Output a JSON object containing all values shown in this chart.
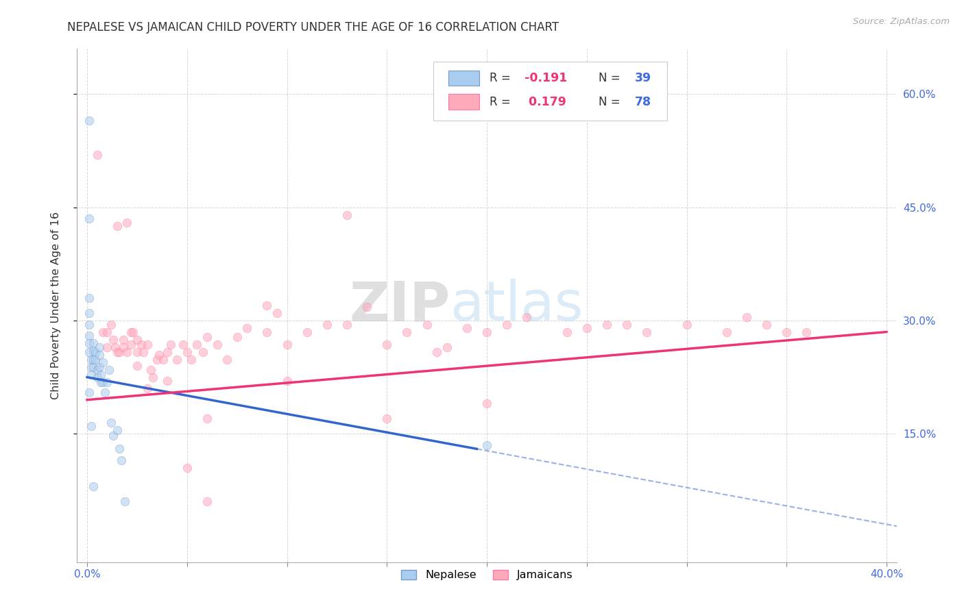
{
  "title": "NEPALESE VS JAMAICAN CHILD POVERTY UNDER THE AGE OF 16 CORRELATION CHART",
  "source": "Source: ZipAtlas.com",
  "ylabel": "Child Poverty Under the Age of 16",
  "xlim": [
    -0.005,
    0.405
  ],
  "ylim": [
    -0.02,
    0.66
  ],
  "xticks": [
    0.0,
    0.05,
    0.1,
    0.15,
    0.2,
    0.25,
    0.3,
    0.35,
    0.4
  ],
  "yticks": [
    0.15,
    0.3,
    0.45,
    0.6
  ],
  "ytick_labels": [
    "15.0%",
    "30.0%",
    "45.0%",
    "60.0%"
  ],
  "grid_color": "#cccccc",
  "background_color": "#ffffff",
  "nepalese_color": "#aaccee",
  "jamaican_color": "#ffaabb",
  "nepalese_edge": "#7799cc",
  "jamaican_edge": "#ff77aa",
  "trend_nepalese_color": "#3366cc",
  "trend_jamaican_color": "#ee3377",
  "nepalese_x": [
    0.001,
    0.001,
    0.001,
    0.001,
    0.001,
    0.001,
    0.001,
    0.001,
    0.002,
    0.002,
    0.002,
    0.003,
    0.003,
    0.003,
    0.003,
    0.004,
    0.004,
    0.005,
    0.005,
    0.006,
    0.006,
    0.006,
    0.007,
    0.007,
    0.008,
    0.008,
    0.009,
    0.01,
    0.011,
    0.012,
    0.013,
    0.015,
    0.016,
    0.017,
    0.019,
    0.001,
    0.002,
    0.003,
    0.2
  ],
  "nepalese_y": [
    0.565,
    0.435,
    0.33,
    0.31,
    0.295,
    0.28,
    0.27,
    0.258,
    0.248,
    0.238,
    0.228,
    0.27,
    0.26,
    0.248,
    0.238,
    0.258,
    0.248,
    0.235,
    0.225,
    0.265,
    0.255,
    0.238,
    0.228,
    0.218,
    0.245,
    0.218,
    0.205,
    0.218,
    0.235,
    0.165,
    0.148,
    0.155,
    0.13,
    0.115,
    0.06,
    0.205,
    0.16,
    0.08,
    0.135
  ],
  "jamaican_x": [
    0.005,
    0.008,
    0.01,
    0.01,
    0.012,
    0.013,
    0.014,
    0.015,
    0.016,
    0.018,
    0.018,
    0.02,
    0.022,
    0.022,
    0.023,
    0.025,
    0.025,
    0.027,
    0.028,
    0.03,
    0.032,
    0.033,
    0.035,
    0.036,
    0.038,
    0.04,
    0.042,
    0.045,
    0.048,
    0.05,
    0.052,
    0.055,
    0.058,
    0.06,
    0.065,
    0.07,
    0.075,
    0.08,
    0.09,
    0.095,
    0.1,
    0.11,
    0.12,
    0.13,
    0.14,
    0.15,
    0.16,
    0.17,
    0.175,
    0.18,
    0.19,
    0.2,
    0.21,
    0.22,
    0.24,
    0.26,
    0.27,
    0.28,
    0.3,
    0.32,
    0.33,
    0.34,
    0.35,
    0.36,
    0.015,
    0.02,
    0.025,
    0.03,
    0.05,
    0.06,
    0.1,
    0.15,
    0.2,
    0.25,
    0.13,
    0.04,
    0.06,
    0.09
  ],
  "jamaican_y": [
    0.52,
    0.285,
    0.285,
    0.265,
    0.295,
    0.275,
    0.265,
    0.258,
    0.258,
    0.275,
    0.265,
    0.258,
    0.285,
    0.268,
    0.285,
    0.258,
    0.24,
    0.268,
    0.258,
    0.268,
    0.235,
    0.225,
    0.248,
    0.255,
    0.248,
    0.258,
    0.268,
    0.248,
    0.268,
    0.258,
    0.248,
    0.268,
    0.258,
    0.278,
    0.268,
    0.248,
    0.278,
    0.29,
    0.285,
    0.31,
    0.268,
    0.285,
    0.295,
    0.295,
    0.318,
    0.268,
    0.285,
    0.295,
    0.258,
    0.265,
    0.29,
    0.285,
    0.295,
    0.305,
    0.285,
    0.295,
    0.295,
    0.285,
    0.295,
    0.285,
    0.305,
    0.295,
    0.285,
    0.285,
    0.425,
    0.43,
    0.275,
    0.21,
    0.105,
    0.06,
    0.22,
    0.17,
    0.19,
    0.29,
    0.44,
    0.22,
    0.17,
    0.32
  ],
  "marker_size": 80,
  "marker_alpha": 0.55
}
